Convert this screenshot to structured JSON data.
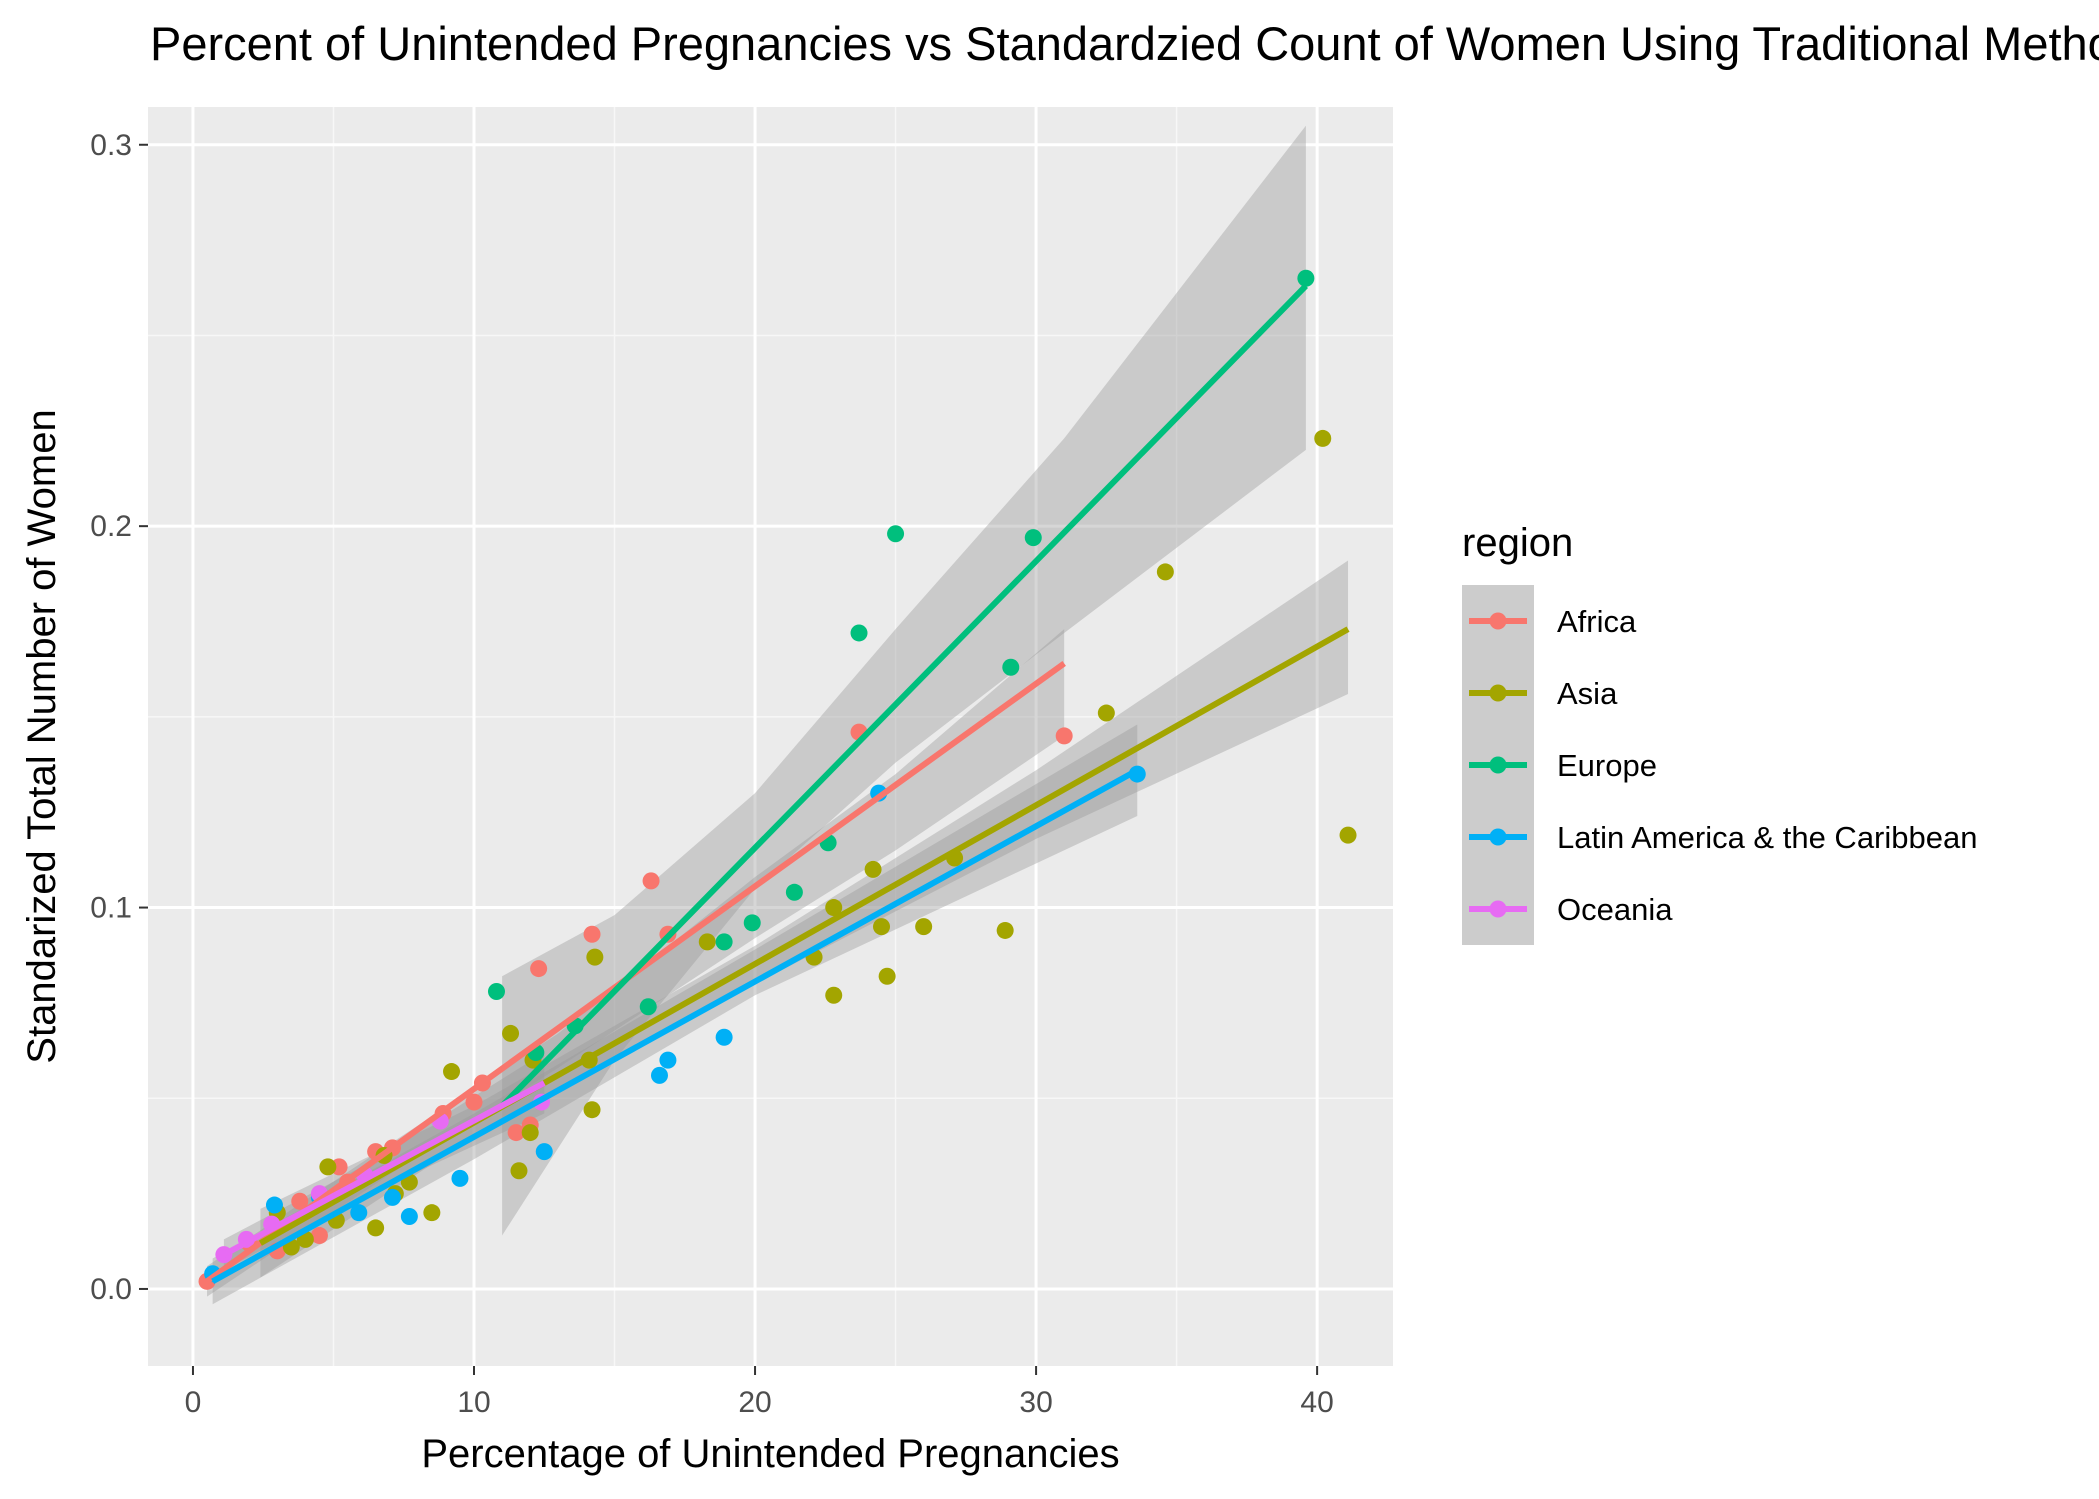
{
  "chart_data": {
    "type": "scatter",
    "title": "Percent of Unintended Pregnancies vs Standardzied Count of Women Using Traditional Methods",
    "xlabel": "Percentage of Unintended Pregnancies",
    "ylabel": "Standarized Total Number of Women",
    "xlim": [
      -1.6,
      42.7
    ],
    "ylim": [
      -0.0202,
      0.3099
    ],
    "xticks": [
      0,
      10,
      20,
      30,
      40
    ],
    "yticks": [
      0.0,
      0.1,
      0.2,
      0.3
    ],
    "xtick_labels": [
      "0",
      "10",
      "20",
      "30",
      "40"
    ],
    "ytick_labels": [
      "0.0",
      "0.1",
      "0.2",
      "0.3"
    ],
    "grid": true,
    "background": "#ebebeb",
    "legend_title": "region",
    "legend_position": "right",
    "series": [
      {
        "name": "Africa",
        "color": "#f8766d",
        "points": [
          [
            0.5,
            0.002
          ],
          [
            2.0,
            0.012
          ],
          [
            3.0,
            0.01
          ],
          [
            3.8,
            0.023
          ],
          [
            4.5,
            0.014
          ],
          [
            5.2,
            0.032
          ],
          [
            5.5,
            0.028
          ],
          [
            6.5,
            0.036
          ],
          [
            7.1,
            0.037
          ],
          [
            8.9,
            0.046
          ],
          [
            10.0,
            0.049
          ],
          [
            10.3,
            0.054
          ],
          [
            11.5,
            0.041
          ],
          [
            12.0,
            0.043
          ],
          [
            12.3,
            0.084
          ],
          [
            14.2,
            0.093
          ],
          [
            16.3,
            0.107
          ],
          [
            16.9,
            0.093
          ],
          [
            23.7,
            0.146
          ],
          [
            31.0,
            0.145
          ]
        ],
        "fit": [
          [
            0.5,
            0.002
          ],
          [
            31.0,
            0.164
          ]
        ],
        "band": [
          [
            0.5,
            -0.002,
            0.006
          ],
          [
            7.0,
            0.03,
            0.038
          ],
          [
            13.0,
            0.058,
            0.067
          ],
          [
            20.0,
            0.092,
            0.108
          ],
          [
            25.0,
            0.115,
            0.135
          ],
          [
            31.0,
            0.145,
            0.173
          ]
        ]
      },
      {
        "name": "Asia",
        "color": "#a3a500",
        "points": [
          [
            3.0,
            0.02
          ],
          [
            3.5,
            0.011
          ],
          [
            4.0,
            0.013
          ],
          [
            4.8,
            0.032
          ],
          [
            5.1,
            0.018
          ],
          [
            6.5,
            0.016
          ],
          [
            6.8,
            0.035
          ],
          [
            7.2,
            0.025
          ],
          [
            7.7,
            0.028
          ],
          [
            8.5,
            0.02
          ],
          [
            9.2,
            0.057
          ],
          [
            11.3,
            0.067
          ],
          [
            11.6,
            0.031
          ],
          [
            12.1,
            0.06
          ],
          [
            12.0,
            0.041
          ],
          [
            14.1,
            0.06
          ],
          [
            14.3,
            0.087
          ],
          [
            14.2,
            0.047
          ],
          [
            18.3,
            0.091
          ],
          [
            22.1,
            0.087
          ],
          [
            22.8,
            0.077
          ],
          [
            22.8,
            0.1
          ],
          [
            24.2,
            0.11
          ],
          [
            24.5,
            0.095
          ],
          [
            24.7,
            0.082
          ],
          [
            26.0,
            0.095
          ],
          [
            27.1,
            0.113
          ],
          [
            28.9,
            0.094
          ],
          [
            32.5,
            0.151
          ],
          [
            34.6,
            0.188
          ],
          [
            40.2,
            0.223
          ],
          [
            41.1,
            0.119
          ]
        ],
        "fit": [
          [
            2.4,
            0.012
          ],
          [
            41.1,
            0.173
          ]
        ],
        "band": [
          [
            2.4,
            0.003,
            0.021
          ],
          [
            10.0,
            0.04,
            0.048
          ],
          [
            20.0,
            0.08,
            0.09
          ],
          [
            30.0,
            0.118,
            0.136
          ],
          [
            41.1,
            0.156,
            0.191
          ]
        ]
      },
      {
        "name": "Europe",
        "color": "#00bf7d",
        "points": [
          [
            10.8,
            0.078
          ],
          [
            12.2,
            0.062
          ],
          [
            13.6,
            0.069
          ],
          [
            16.2,
            0.074
          ],
          [
            18.9,
            0.091
          ],
          [
            19.9,
            0.096
          ],
          [
            21.4,
            0.104
          ],
          [
            22.6,
            0.117
          ],
          [
            23.7,
            0.172
          ],
          [
            25.0,
            0.198
          ],
          [
            29.1,
            0.163
          ],
          [
            29.9,
            0.197
          ],
          [
            39.6,
            0.265
          ]
        ],
        "fit": [
          [
            11.0,
            0.048
          ],
          [
            39.6,
            0.263
          ]
        ],
        "band": [
          [
            11.0,
            0.014,
            0.082
          ],
          [
            15.0,
            0.06,
            0.098
          ],
          [
            20.0,
            0.105,
            0.13
          ],
          [
            25.0,
            0.138,
            0.173
          ],
          [
            31.0,
            0.172,
            0.223
          ],
          [
            39.6,
            0.22,
            0.305
          ]
        ]
      },
      {
        "name": "Latin America & the Caribbean",
        "color": "#00b0f6",
        "points": [
          [
            0.7,
            0.004
          ],
          [
            2.9,
            0.022
          ],
          [
            4.5,
            0.024
          ],
          [
            5.9,
            0.02
          ],
          [
            7.1,
            0.024
          ],
          [
            7.7,
            0.019
          ],
          [
            9.5,
            0.029
          ],
          [
            12.5,
            0.036
          ],
          [
            16.6,
            0.056
          ],
          [
            16.9,
            0.06
          ],
          [
            18.9,
            0.066
          ],
          [
            24.4,
            0.13
          ],
          [
            33.6,
            0.135
          ]
        ],
        "fit": [
          [
            0.7,
            0.002
          ],
          [
            33.6,
            0.136
          ]
        ],
        "band": [
          [
            0.7,
            -0.004,
            0.008
          ],
          [
            10.0,
            0.034,
            0.046
          ],
          [
            20.0,
            0.077,
            0.089
          ],
          [
            33.6,
            0.124,
            0.148
          ]
        ]
      },
      {
        "name": "Oceania",
        "color": "#e76bf3",
        "points": [
          [
            1.1,
            0.009
          ],
          [
            1.9,
            0.013
          ],
          [
            2.8,
            0.017
          ],
          [
            4.5,
            0.025
          ],
          [
            6.1,
            0.03
          ],
          [
            8.8,
            0.044
          ],
          [
            12.4,
            0.049
          ]
        ],
        "fit": [
          [
            1.1,
            0.009
          ],
          [
            12.5,
            0.054
          ]
        ],
        "band": [
          [
            1.1,
            0.005,
            0.013
          ],
          [
            6.0,
            0.024,
            0.032
          ],
          [
            12.5,
            0.046,
            0.062
          ]
        ]
      }
    ]
  }
}
